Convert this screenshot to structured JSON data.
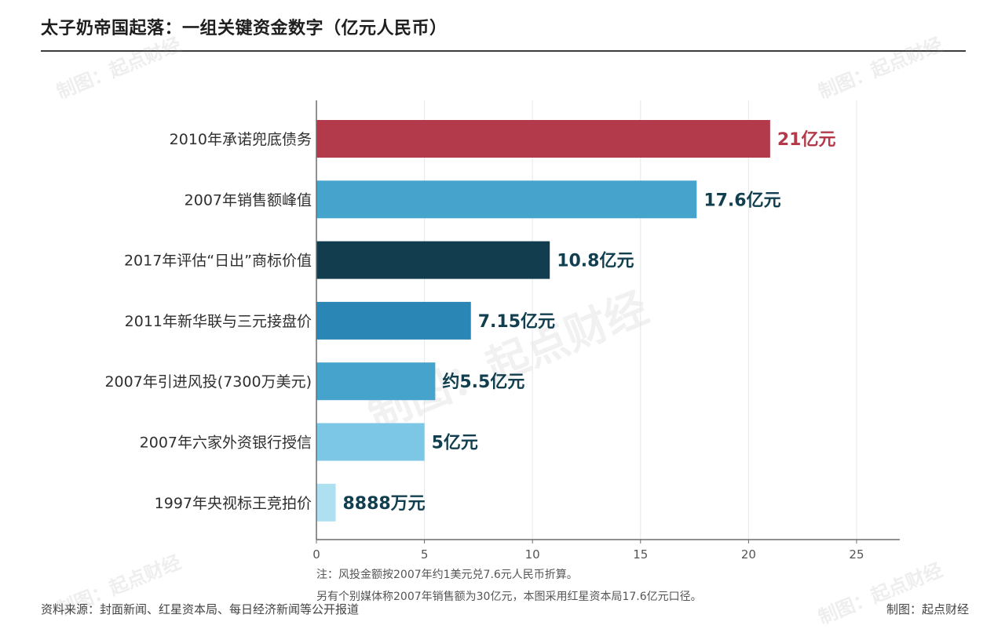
{
  "title": "太子奶帝国起落：一组关键资金数字（亿元人民币）",
  "watermark": "制图：起点财经",
  "notes": [
    "注：风投金额按2007年约1美元兑7.6元人民币折算。",
    "另有个别媒体称2007年销售额为30亿元，本图采用红星资本局17.6亿元口径。"
  ],
  "footer": {
    "source": "资料来源：封面新闻、红星资本局、每日经济新闻等公开报道",
    "credit": "制图：起点财经"
  },
  "chart_data": {
    "type": "bar",
    "orientation": "horizontal",
    "title": "太子奶帝国起落：一组关键资金数字（亿元人民币）",
    "categories": [
      "2010年承诺兜底债务",
      "2007年销售额峰值",
      "2017年评估“日出”商标价值",
      "2011年新华联与三元接盘价",
      "2007年引进风投(7300万美元)",
      "2007年六家外资银行授信",
      "1997年央视标王竞拍价"
    ],
    "values": [
      21,
      17.6,
      10.8,
      7.15,
      5.5,
      5,
      0.8888
    ],
    "data_labels": [
      "21亿元",
      "17.6亿元",
      "10.8亿元",
      "7.15亿元",
      "约5.5亿元",
      "5亿元",
      "8888万元"
    ],
    "colors": [
      "#b23a4b",
      "#45a3cc",
      "#113d4f",
      "#2a86b4",
      "#45a3cc",
      "#7cc6e6",
      "#aee0f2"
    ],
    "label_colors": [
      "#b23a4b",
      "#123f50",
      "#123f50",
      "#123f50",
      "#123f50",
      "#123f50",
      "#123f50"
    ],
    "xlim": [
      0,
      27
    ],
    "xticks": [
      0,
      5,
      10,
      15,
      20,
      25
    ],
    "grid": true
  }
}
